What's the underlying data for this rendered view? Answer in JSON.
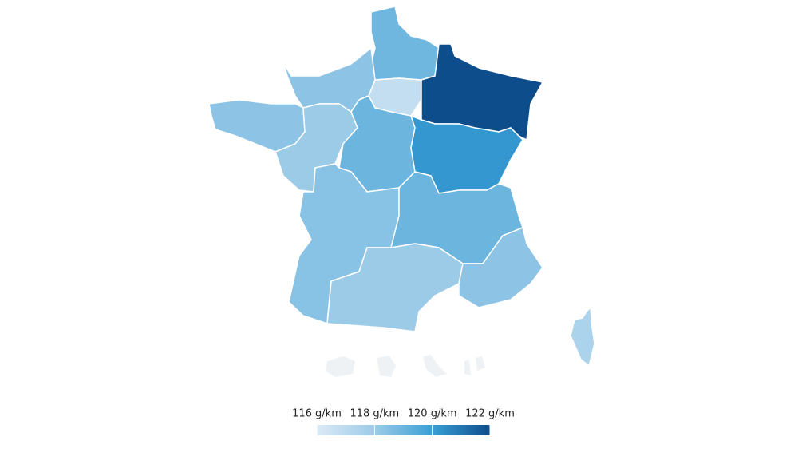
{
  "chart_data": {
    "type": "choropleth",
    "values": [
      118.9,
      116.8,
      122,
      118.3,
      118.3,
      118,
      119,
      120.2,
      118.4,
      119,
      118,
      118.3,
      117.5
    ],
    "colors": [
      "#dbeaf6",
      "#9ccbe8",
      "#3a9fd6",
      "#0d4d8c"
    ],
    "clim": [
      116,
      122
    ],
    "ticks": [
      {
        "value": 116,
        "label": "116 g/km"
      },
      {
        "value": 118,
        "label": "118 g/km"
      },
      {
        "value": 120,
        "label": "120 g/km"
      },
      {
        "value": 122,
        "label": "122 g/km"
      }
    ]
  }
}
